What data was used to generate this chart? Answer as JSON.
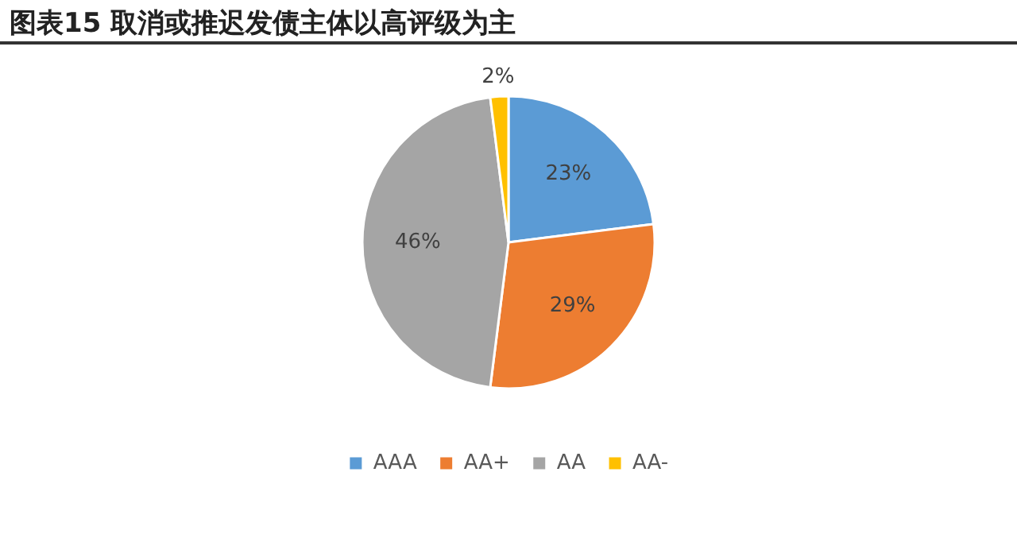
{
  "chart_data": {
    "type": "pie",
    "title": "图表15   取消或推迟发债主体以高评级为主",
    "categories": [
      "AAA",
      "AA+",
      "AA",
      "AA-"
    ],
    "values": [
      23,
      29,
      46,
      2
    ],
    "value_labels": [
      "23%",
      "29%",
      "46%",
      "2%"
    ],
    "colors": [
      "#5b9bd5",
      "#ed7d31",
      "#a5a5a5",
      "#ffc000"
    ],
    "legend": "bottom"
  }
}
